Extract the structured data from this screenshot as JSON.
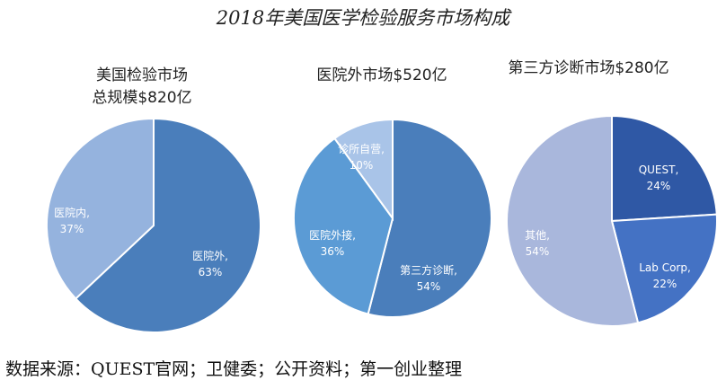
{
  "page": {
    "title": "2018年美国医学检验服务市场构成",
    "source": "数据来源：QUEST官网；卫健委；公开资料；第一创业整理"
  },
  "chart_data": [
    {
      "type": "pie",
      "title_lines": [
        "美国检验市场",
        "总规模$820亿"
      ],
      "slices": [
        {
          "name": "医院外,",
          "value": 63,
          "value_label": "63%",
          "color": "#4a7ebb",
          "label_color": "#ffffff"
        },
        {
          "name": "医院内,",
          "value": 37,
          "value_label": "37%",
          "color": "#95b3de",
          "label_color": "#ffffff"
        }
      ]
    },
    {
      "type": "pie",
      "title_lines": [
        "医院外市场$520亿"
      ],
      "slices": [
        {
          "name": "第三方诊断,",
          "value": 54,
          "value_label": "54%",
          "color": "#4a7ebb",
          "label_color": "#ffffff"
        },
        {
          "name": "医院外接,",
          "value": 36,
          "value_label": "36%",
          "color": "#5b9bd5",
          "label_color": "#ffffff"
        },
        {
          "name": "诊所自营,",
          "value": 10,
          "value_label": "10%",
          "color": "#a9c4e8",
          "label_color": "#ffffff"
        }
      ]
    },
    {
      "type": "pie",
      "title_lines": [
        "第三方诊断市场$280亿"
      ],
      "slices": [
        {
          "name": "QUEST,",
          "value": 24,
          "value_label": "24%",
          "color": "#2f58a5",
          "label_color": "#ffffff"
        },
        {
          "name": "Lab Corp,",
          "value": 22,
          "value_label": "22%",
          "color": "#4472c4",
          "label_color": "#ffffff"
        },
        {
          "name": "其他,",
          "value": 54,
          "value_label": "54%",
          "color": "#a9b7dc",
          "label_color": "#ffffff"
        }
      ]
    }
  ]
}
